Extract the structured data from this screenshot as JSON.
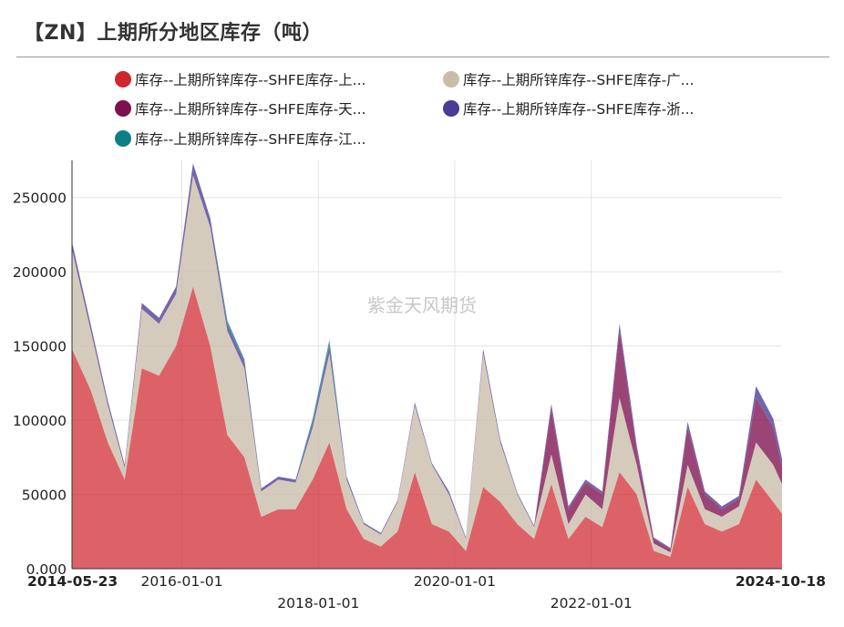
{
  "title": "【ZN】上期所分地区库存（吨）",
  "watermark": "紫金天风期货",
  "legend": [
    {
      "label": "库存--上期所锌库存--SHFE库存-上...",
      "color": "#d0262e"
    },
    {
      "label": "库存--上期所锌库存--SHFE库存-广...",
      "color": "#c9bda9"
    },
    {
      "label": "库存--上期所锌库存--SHFE库存-天...",
      "color": "#7d1150"
    },
    {
      "label": "库存--上期所锌库存--SHFE库存-浙...",
      "color": "#4b3a96"
    },
    {
      "label": "库存--上期所锌库存--SHFE库存-江...",
      "color": "#0f7f86"
    }
  ],
  "chart_data": {
    "type": "area",
    "stacked": true,
    "title": "【ZN】上期所分地区库存（吨）",
    "xlabel": "",
    "ylabel": "",
    "xlim": [
      "2014-05-23",
      "2024-10-18"
    ],
    "ylim": [
      0,
      275000
    ],
    "yticks": [
      0,
      50000,
      100000,
      150000,
      200000,
      250000
    ],
    "ytick_labels": [
      "0.000",
      "50000",
      "100000",
      "150000",
      "200000",
      "250000"
    ],
    "xticks": [
      "2014-05-23",
      "2016-01-01",
      "2018-01-01",
      "2020-01-01",
      "2022-01-01",
      "2024-10-18"
    ],
    "grid": true,
    "legend_position": "top",
    "x": [
      "2014-05-23",
      "2014-09-01",
      "2014-12-01",
      "2015-03-01",
      "2015-06-01",
      "2015-09-01",
      "2015-12-01",
      "2016-03-01",
      "2016-06-01",
      "2016-09-01",
      "2016-12-01",
      "2017-03-01",
      "2017-06-01",
      "2017-09-01",
      "2017-12-01",
      "2018-03-01",
      "2018-06-01",
      "2018-09-01",
      "2018-12-01",
      "2019-03-01",
      "2019-06-01",
      "2019-09-01",
      "2019-12-01",
      "2020-03-01",
      "2020-06-01",
      "2020-09-01",
      "2020-12-01",
      "2021-03-01",
      "2021-06-01",
      "2021-09-01",
      "2021-12-01",
      "2022-03-01",
      "2022-06-01",
      "2022-09-01",
      "2022-12-01",
      "2023-03-01",
      "2023-06-01",
      "2023-09-01",
      "2023-12-01",
      "2024-03-01",
      "2024-06-01",
      "2024-09-01",
      "2024-10-18"
    ],
    "series": [
      {
        "name": "库存--上期所锌库存--SHFE库存-上...",
        "color": "#d0262e",
        "values": [
          148000,
          120000,
          85000,
          60000,
          135000,
          130000,
          150000,
          190000,
          150000,
          90000,
          75000,
          35000,
          40000,
          40000,
          60000,
          85000,
          40000,
          20000,
          15000,
          25000,
          65000,
          30000,
          25000,
          12000,
          55000,
          45000,
          30000,
          20000,
          57000,
          20000,
          35000,
          28000,
          65000,
          50000,
          12000,
          8000,
          55000,
          30000,
          25000,
          30000,
          60000,
          45000,
          37000
        ]
      },
      {
        "name": "库存--上期所锌库存--SHFE库存-广...",
        "color": "#c9bda9",
        "values": [
          67000,
          40000,
          25000,
          8000,
          40000,
          35000,
          35000,
          75000,
          80000,
          70000,
          60000,
          17000,
          20000,
          18000,
          35000,
          60000,
          20000,
          10000,
          8000,
          20000,
          45000,
          40000,
          25000,
          8000,
          90000,
          40000,
          20000,
          8000,
          20000,
          10000,
          15000,
          12000,
          50000,
          20000,
          5000,
          3000,
          15000,
          10000,
          10000,
          12000,
          25000,
          25000,
          20000
        ]
      },
      {
        "name": "库存--上期所锌库存--SHFE库存-天...",
        "color": "#7d1150",
        "values": [
          0,
          0,
          0,
          0,
          0,
          0,
          0,
          0,
          0,
          0,
          0,
          0,
          0,
          0,
          0,
          0,
          0,
          0,
          0,
          0,
          0,
          0,
          0,
          0,
          0,
          0,
          0,
          0,
          30000,
          10000,
          8000,
          10000,
          45000,
          10000,
          3000,
          2000,
          25000,
          10000,
          5000,
          5000,
          30000,
          25000,
          12000
        ]
      },
      {
        "name": "库存--上期所锌库存--SHFE库存-浙...",
        "color": "#4b3a96",
        "values": [
          5000,
          4000,
          3000,
          2000,
          4000,
          4000,
          5000,
          8000,
          6000,
          4000,
          4000,
          2000,
          2000,
          2000,
          3000,
          5000,
          2000,
          1000,
          1000,
          1000,
          2000,
          1000,
          2000,
          1000,
          3000,
          2000,
          1000,
          1000,
          4000,
          2000,
          2000,
          2000,
          5000,
          3000,
          1000,
          1000,
          4000,
          2000,
          2000,
          2000,
          8000,
          6000,
          5000
        ]
      },
      {
        "name": "库存--上期所锌库存--SHFE库存-江...",
        "color": "#0f7f86",
        "values": [
          0,
          0,
          0,
          0,
          0,
          0,
          0,
          0,
          0,
          3000,
          2000,
          0,
          0,
          0,
          3000,
          4000,
          0,
          0,
          0,
          0,
          0,
          0,
          0,
          0,
          0,
          0,
          0,
          0,
          0,
          0,
          0,
          0,
          0,
          0,
          0,
          0,
          0,
          0,
          0,
          0,
          0,
          0,
          0
        ]
      }
    ]
  }
}
